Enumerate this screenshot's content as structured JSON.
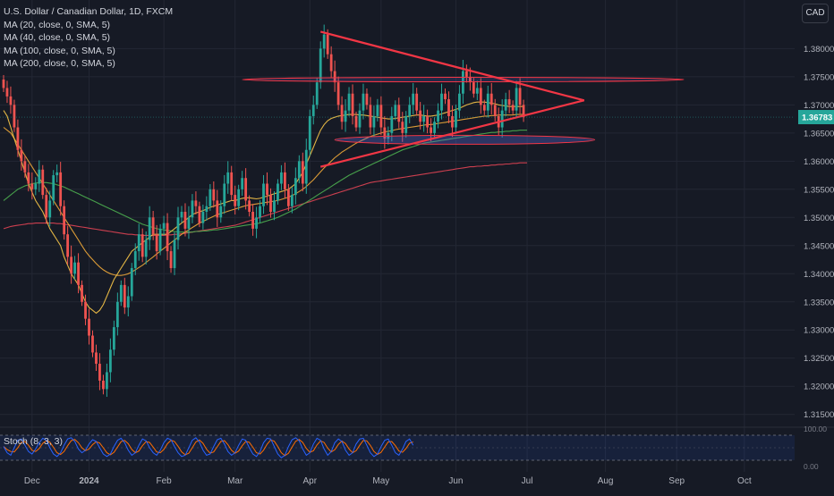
{
  "header": {
    "symbol_title": "U.S. Dollar / Canadian Dollar, 1D, FXCM",
    "currency": "CAD",
    "indicators": [
      "MA (20, close, 0, SMA, 5)",
      "MA (40, close, 0, SMA, 5)",
      "MA (100, close, 0, SMA, 5)",
      "MA (200, close, 0, SMA, 5)"
    ]
  },
  "stochastic": {
    "label": "Stoch (8, 3, 3)",
    "scale_top": "100.00",
    "scale_bottom": "0.00",
    "k_color": "#2962ff",
    "d_color": "#ff6d00",
    "k": [
      55,
      30,
      20,
      50,
      80,
      85,
      60,
      35,
      25,
      45,
      70,
      88,
      80,
      50,
      25,
      15,
      30,
      60,
      85,
      90,
      75,
      45,
      30,
      40,
      65,
      82,
      75,
      50,
      25,
      15,
      25,
      55,
      80,
      88,
      70,
      40,
      20,
      30,
      60,
      85,
      78,
      50,
      30,
      20,
      40,
      70,
      88,
      82,
      55,
      30,
      15,
      20,
      50,
      80,
      90,
      72,
      40,
      20,
      25,
      55,
      82,
      88,
      65,
      35,
      20,
      30,
      60,
      85,
      80,
      50,
      25,
      15,
      35,
      70,
      88,
      85,
      55,
      25,
      10,
      20,
      55,
      82,
      90,
      78,
      45,
      20,
      30,
      65,
      88,
      80,
      45,
      20,
      35,
      70,
      85,
      75,
      40,
      20,
      30,
      65,
      85,
      88,
      60,
      30,
      15,
      25,
      55,
      80,
      85,
      60,
      30,
      20,
      45,
      75,
      85,
      60
    ]
  },
  "chart_data": {
    "type": "candlestick",
    "title": "U.S. Dollar / Canadian Dollar, 1D, FXCM",
    "y_ticks": [
      1.38,
      1.375,
      1.37,
      1.365,
      1.36,
      1.355,
      1.35,
      1.345,
      1.34,
      1.335,
      1.33,
      1.325,
      1.32,
      1.315
    ],
    "ylim": [
      1.314,
      1.388
    ],
    "x_ticks": [
      {
        "label": "Dec",
        "bar": 8
      },
      {
        "label": "2024",
        "bar": 24
      },
      {
        "label": "Feb",
        "bar": 45
      },
      {
        "label": "Mar",
        "bar": 65
      },
      {
        "label": "Apr",
        "bar": 86
      },
      {
        "label": "May",
        "bar": 106
      },
      {
        "label": "Jun",
        "bar": 127
      },
      {
        "label": "Jul",
        "bar": 147
      },
      {
        "label": "Aug",
        "bar": 169
      },
      {
        "label": "Sep",
        "bar": 189
      },
      {
        "label": "Oct",
        "bar": 208
      }
    ],
    "last_price": 1.36783,
    "last_price_label": "1.36783",
    "colors": {
      "up": "#26a69a",
      "down": "#ef5350",
      "ma20": "#f7c548",
      "ma40": "#f0a838",
      "ma100": "#4caf50",
      "ma200": "#e04454",
      "pattern": "#f23645",
      "zone": "#5a6ad8"
    },
    "closes": [
      1.373,
      1.3715,
      1.37,
      1.366,
      1.362,
      1.36,
      1.358,
      1.356,
      1.355,
      1.356,
      1.3585,
      1.354,
      1.35,
      1.353,
      1.3575,
      1.358,
      1.352,
      1.347,
      1.343,
      1.34,
      1.342,
      1.338,
      1.335,
      1.332,
      1.329,
      1.326,
      1.324,
      1.321,
      1.3195,
      1.3225,
      1.3265,
      1.3305,
      1.335,
      1.338,
      1.334,
      1.336,
      1.341,
      1.344,
      1.347,
      1.343,
      1.346,
      1.35,
      1.347,
      1.344,
      1.348,
      1.349,
      1.344,
      1.341,
      1.346,
      1.35,
      1.351,
      1.348,
      1.35,
      1.353,
      1.352,
      1.349,
      1.351,
      1.352,
      1.355,
      1.353,
      1.35,
      1.352,
      1.356,
      1.358,
      1.354,
      1.352,
      1.355,
      1.357,
      1.353,
      1.351,
      1.348,
      1.35,
      1.352,
      1.356,
      1.354,
      1.351,
      1.353,
      1.356,
      1.358,
      1.355,
      1.352,
      1.354,
      1.357,
      1.36,
      1.356,
      1.362,
      1.368,
      1.37,
      1.374,
      1.38,
      1.3825,
      1.379,
      1.376,
      1.374,
      1.37,
      1.367,
      1.369,
      1.372,
      1.368,
      1.366,
      1.369,
      1.372,
      1.37,
      1.366,
      1.368,
      1.37,
      1.366,
      1.364,
      1.365,
      1.368,
      1.37,
      1.367,
      1.365,
      1.368,
      1.37,
      1.372,
      1.369,
      1.367,
      1.368,
      1.366,
      1.365,
      1.367,
      1.369,
      1.372,
      1.371,
      1.368,
      1.366,
      1.369,
      1.372,
      1.376,
      1.375,
      1.374,
      1.372,
      1.373,
      1.37,
      1.369,
      1.372,
      1.37,
      1.368,
      1.366,
      1.369,
      1.371,
      1.37,
      1.369,
      1.373,
      1.37,
      1.3678
    ],
    "series": [
      {
        "name": "MA (20, close, 0, SMA, 5)"
      },
      {
        "name": "MA (40, close, 0, SMA, 5)"
      },
      {
        "name": "MA (100, close, 0, SMA, 5)"
      },
      {
        "name": "MA (200, close, 0, SMA, 5)"
      }
    ],
    "ma20": [
      1.369,
      1.368,
      1.366,
      1.364,
      1.362,
      1.36,
      1.358,
      1.356,
      1.3545,
      1.353,
      1.352,
      1.351,
      1.3495,
      1.348,
      1.347,
      1.346,
      1.345,
      1.343,
      1.3415,
      1.34,
      1.339,
      1.338,
      1.3365,
      1.335,
      1.334,
      1.3335,
      1.333,
      1.3335,
      1.3345,
      1.336,
      1.3375,
      1.339,
      1.34,
      1.341,
      1.342,
      1.343,
      1.344,
      1.3445,
      1.345,
      1.3455,
      1.346,
      1.3465,
      1.347,
      1.347,
      1.347,
      1.347,
      1.347,
      1.3475,
      1.348,
      1.3485,
      1.349,
      1.3495,
      1.35,
      1.3505,
      1.3508,
      1.351,
      1.3512,
      1.3515,
      1.3518,
      1.352,
      1.3522,
      1.3524,
      1.3526,
      1.3528,
      1.353,
      1.353,
      1.3532,
      1.3534,
      1.3535,
      1.3535,
      1.3534,
      1.3533,
      1.3534,
      1.3536,
      1.3538,
      1.354,
      1.3542,
      1.3544,
      1.3546,
      1.3548,
      1.355,
      1.3555,
      1.356,
      1.357,
      1.358,
      1.3595,
      1.361,
      1.3625,
      1.364,
      1.3655,
      1.3665,
      1.3672,
      1.3676,
      1.3678,
      1.368,
      1.3681,
      1.3682,
      1.3683,
      1.3683,
      1.3683,
      1.3682,
      1.3682,
      1.3681,
      1.368,
      1.3679,
      1.3678,
      1.3677,
      1.3676,
      1.3675,
      1.3675,
      1.3676,
      1.3677,
      1.3678,
      1.3679,
      1.368,
      1.3681,
      1.3682,
      1.3682,
      1.3681,
      1.368,
      1.368,
      1.3681,
      1.3682,
      1.3684,
      1.3686,
      1.3688,
      1.369,
      1.3692,
      1.3694,
      1.3697,
      1.37,
      1.3702,
      1.3704,
      1.3705,
      1.3705,
      1.3705,
      1.3704,
      1.3703,
      1.3702,
      1.37,
      1.3699,
      1.3698,
      1.3697,
      1.3697,
      1.3697,
      1.3697,
      1.3697
    ],
    "ma40": [
      1.366,
      1.3655,
      1.365,
      1.364,
      1.363,
      1.362,
      1.361,
      1.36,
      1.359,
      1.358,
      1.357,
      1.356,
      1.355,
      1.354,
      1.353,
      1.352,
      1.351,
      1.35,
      1.349,
      1.348,
      1.347,
      1.346,
      1.345,
      1.344,
      1.3432,
      1.3425,
      1.3418,
      1.3412,
      1.3407,
      1.3403,
      1.34,
      1.3398,
      1.3397,
      1.3397,
      1.3398,
      1.34,
      1.3403,
      1.3407,
      1.3411,
      1.3415,
      1.342,
      1.3425,
      1.343,
      1.3435,
      1.344,
      1.3445,
      1.345,
      1.3455,
      1.346,
      1.3465,
      1.347,
      1.3474,
      1.3478,
      1.3482,
      1.3486,
      1.349,
      1.3493,
      1.3496,
      1.3499,
      1.3502,
      1.3505,
      1.3507,
      1.3509,
      1.3511,
      1.3513,
      1.3515,
      1.3517,
      1.3519,
      1.3521,
      1.3522,
      1.3523,
      1.3524,
      1.3525,
      1.3526,
      1.3527,
      1.3528,
      1.3529,
      1.353,
      1.3532,
      1.3534,
      1.3536,
      1.3539,
      1.3542,
      1.3546,
      1.355,
      1.3555,
      1.3561,
      1.3567,
      1.3574,
      1.3581,
      1.3588,
      1.3594,
      1.36,
      1.3606,
      1.3611,
      1.3616,
      1.362,
      1.3624,
      1.3628,
      1.3632,
      1.3635,
      1.3638,
      1.3641,
      1.3644,
      1.3646,
      1.3648,
      1.365,
      1.3652,
      1.3653,
      1.3654,
      1.3656,
      1.3657,
      1.3658,
      1.3659,
      1.366,
      1.3661,
      1.3662,
      1.3663,
      1.3664,
      1.3665,
      1.3665,
      1.3666,
      1.3667,
      1.3668,
      1.3669,
      1.367,
      1.3671,
      1.3672,
      1.3673,
      1.3674,
      1.3675,
      1.3676,
      1.3677,
      1.3678,
      1.3679,
      1.368,
      1.368,
      1.3681,
      1.3681,
      1.3682,
      1.3682,
      1.3682,
      1.3682,
      1.3682,
      1.3683,
      1.3683,
      1.3683
    ],
    "ma100": [
      1.353,
      1.3535,
      1.354,
      1.3545,
      1.355,
      1.3553,
      1.3556,
      1.3558,
      1.356,
      1.3561,
      1.3562,
      1.3562,
      1.3562,
      1.3561,
      1.356,
      1.3558,
      1.3556,
      1.3554,
      1.3551,
      1.3548,
      1.3545,
      1.3542,
      1.3539,
      1.3536,
      1.3533,
      1.353,
      1.3527,
      1.3524,
      1.3521,
      1.3518,
      1.3515,
      1.3512,
      1.3509,
      1.3506,
      1.3503,
      1.35,
      1.3497,
      1.3494,
      1.3491,
      1.3488,
      1.3486,
      1.3484,
      1.3482,
      1.348,
      1.3479,
      1.3478,
      1.3477,
      1.3476,
      1.3475,
      1.3474,
      1.3474,
      1.3474,
      1.3474,
      1.3474,
      1.3475,
      1.3475,
      1.3476,
      1.3476,
      1.3477,
      1.3478,
      1.3478,
      1.3479,
      1.348,
      1.3481,
      1.3482,
      1.3483,
      1.3484,
      1.3485,
      1.3486,
      1.3487,
      1.3488,
      1.3489,
      1.349,
      1.3492,
      1.3494,
      1.3496,
      1.3498,
      1.35,
      1.3503,
      1.3506,
      1.3509,
      1.3512,
      1.3515,
      1.3519,
      1.3523,
      1.3527,
      1.3531,
      1.3535,
      1.3539,
      1.3543,
      1.3547,
      1.3551,
      1.3555,
      1.3559,
      1.3563,
      1.3567,
      1.3571,
      1.3575,
      1.3578,
      1.3581,
      1.3584,
      1.3587,
      1.359,
      1.3593,
      1.3596,
      1.3599,
      1.3602,
      1.3605,
      1.3608,
      1.3611,
      1.3614,
      1.3617,
      1.362,
      1.3622,
      1.3624,
      1.3626,
      1.3628,
      1.363,
      1.3632,
      1.3633,
      1.3634,
      1.3635,
      1.3636,
      1.3637,
      1.3638,
      1.3639,
      1.364,
      1.3641,
      1.3642,
      1.3643,
      1.3644,
      1.3645,
      1.3646,
      1.3647,
      1.3648,
      1.3649,
      1.365,
      1.3651,
      1.3651,
      1.3652,
      1.3652,
      1.3653,
      1.3653,
      1.3654,
      1.3654,
      1.3655,
      1.3655,
      1.3655
    ],
    "ma200": [
      1.348,
      1.3482,
      1.3484,
      1.3485,
      1.3486,
      1.3487,
      1.3488,
      1.3489,
      1.3489,
      1.349,
      1.349,
      1.349,
      1.349,
      1.349,
      1.349,
      1.3489,
      1.3489,
      1.3488,
      1.3487,
      1.3486,
      1.3485,
      1.3484,
      1.3483,
      1.3482,
      1.3481,
      1.348,
      1.3479,
      1.3478,
      1.3477,
      1.3476,
      1.3475,
      1.3474,
      1.3473,
      1.3472,
      1.3471,
      1.347,
      1.347,
      1.3469,
      1.3469,
      1.3468,
      1.3468,
      1.3468,
      1.3468,
      1.3468,
      1.3468,
      1.3468,
      1.3469,
      1.3469,
      1.347,
      1.347,
      1.3471,
      1.3472,
      1.3473,
      1.3474,
      1.3475,
      1.3476,
      1.3477,
      1.3478,
      1.3479,
      1.348,
      1.3481,
      1.3482,
      1.3483,
      1.3484,
      1.3485,
      1.3486,
      1.3488,
      1.349,
      1.3492,
      1.3494,
      1.3496,
      1.3498,
      1.35,
      1.3502,
      1.3504,
      1.3506,
      1.3508,
      1.351,
      1.3512,
      1.3514,
      1.3516,
      1.3518,
      1.352,
      1.3522,
      1.3524,
      1.3526,
      1.3528,
      1.353,
      1.3532,
      1.3534,
      1.3536,
      1.3538,
      1.354,
      1.3542,
      1.3544,
      1.3546,
      1.3548,
      1.355,
      1.3552,
      1.3554,
      1.3556,
      1.3558,
      1.356,
      1.3562,
      1.3563,
      1.3564,
      1.3565,
      1.3566,
      1.3567,
      1.3568,
      1.3569,
      1.357,
      1.3571,
      1.3572,
      1.3573,
      1.3574,
      1.3575,
      1.3576,
      1.3577,
      1.3578,
      1.3579,
      1.358,
      1.3581,
      1.3582,
      1.3583,
      1.3584,
      1.3585,
      1.3586,
      1.3587,
      1.3588,
      1.3589,
      1.359,
      1.359,
      1.3591,
      1.3591,
      1.3592,
      1.3592,
      1.3593,
      1.3593,
      1.3594,
      1.3594,
      1.3595,
      1.3595,
      1.3596,
      1.3596,
      1.3597,
      1.3597,
      1.3597
    ],
    "annotations": {
      "triangle": {
        "upper_start": {
          "bar": 89,
          "price": 1.383
        },
        "lower_start": {
          "bar": 89,
          "price": 1.359
        },
        "apex": {
          "bar": 163,
          "price": 1.3708
        }
      },
      "resistance_ellipse": {
        "bar_from": 67,
        "bar_to": 191,
        "price": 1.3745,
        "half_height": 0.0004
      },
      "support_ellipse": {
        "bar_from": 93,
        "bar_to": 166,
        "price": 1.3638,
        "half_height": 0.0008
      }
    }
  }
}
